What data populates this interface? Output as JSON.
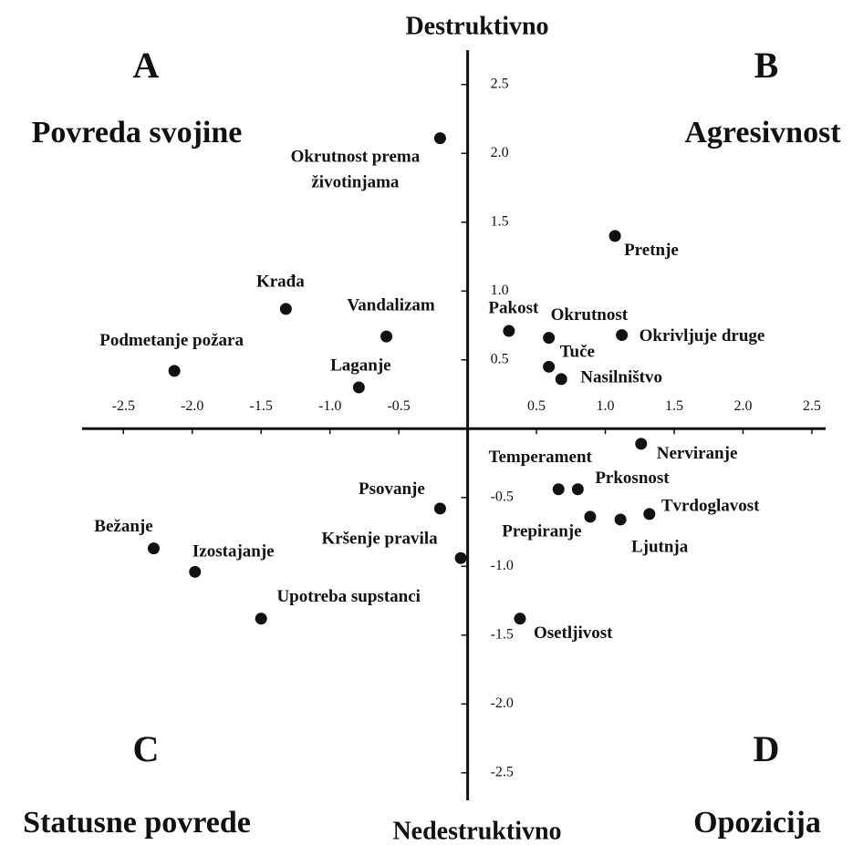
{
  "chart_data": {
    "type": "scatter",
    "top_label": "Destruktivno",
    "bottom_label": "Nedestruktivno",
    "quadrants": [
      {
        "letter": "A",
        "title": "Povreda svojine"
      },
      {
        "letter": "B",
        "title": "Agresivnost"
      },
      {
        "letter": "C",
        "title": "Statusne povrede"
      },
      {
        "letter": "D",
        "title": "Opozicija"
      }
    ],
    "color": "#111111",
    "labels": [
      "Okrutnost prema životinjama",
      "Pretnje",
      "Krađa",
      "Vandalizam",
      "Podmetanje požara",
      "Laganje",
      "Pakost",
      "Okrutnost",
      "Okrivljuje druge",
      "Tuče",
      "Nasilništvo",
      "Nerviranje",
      "Temperament",
      "Prkosnost",
      "Psovanje",
      "Prepiranje",
      "Ljutnja",
      "Tvrdoglavost",
      "Bežanje",
      "Izostajanje",
      "Kršenje pravila",
      "Upotreba supstanci",
      "Osetljivost"
    ],
    "x": [
      -0.2,
      1.07,
      -1.32,
      -0.59,
      -2.13,
      -0.79,
      0.3,
      0.59,
      1.12,
      0.59,
      0.68,
      1.26,
      0.66,
      0.8,
      -0.2,
      0.89,
      1.11,
      1.32,
      -2.28,
      -1.98,
      -0.05,
      -1.5,
      0.38
    ],
    "values": [
      2.11,
      1.4,
      0.87,
      0.67,
      0.42,
      0.3,
      0.71,
      0.66,
      0.68,
      0.45,
      0.36,
      -0.11,
      -0.44,
      -0.44,
      -0.58,
      -0.64,
      -0.66,
      -0.62,
      -0.87,
      -1.04,
      -0.94,
      -1.38,
      -1.38
    ],
    "xlim": [
      -2.8,
      2.6
    ],
    "ylim": [
      -2.7,
      2.75
    ],
    "xticks": [
      -2.5,
      {
        "value": -2,
        "label": "-2.0"
      },
      -1.5,
      {
        "value": -1,
        "label": "-1.0"
      },
      -0.5,
      0.5,
      {
        "value": 1,
        "label": "1.0"
      },
      1.5,
      {
        "value": 2,
        "label": "2.0"
      },
      2.5
    ],
    "yticks": [
      2.5,
      {
        "value": 2,
        "label": "2.0"
      },
      1.5,
      {
        "value": 1,
        "label": "1.0"
      },
      0.5,
      -0.5,
      {
        "value": -1,
        "label": "-1.0"
      },
      -1.5,
      {
        "value": -2,
        "label": "-2.0"
      },
      -2.5
    ]
  }
}
